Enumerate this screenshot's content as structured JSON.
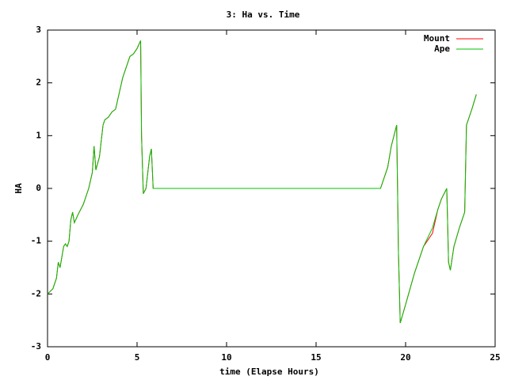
{
  "chart_data": {
    "type": "line",
    "title": "3: Ha vs. Time",
    "x_label": "time (Elapse Hours)",
    "y_label": "HA",
    "x": [
      0,
      0.3,
      0.5,
      0.6,
      0.7,
      0.8,
      0.9,
      1.0,
      1.1,
      1.2,
      1.3,
      1.4,
      1.5,
      1.7,
      2.0,
      2.3,
      2.5,
      2.6,
      2.7,
      2.9,
      3.1,
      3.2,
      3.4,
      3.6,
      3.8,
      4.0,
      4.2,
      4.4,
      4.6,
      4.8,
      5.0,
      5.2,
      5.25,
      5.35,
      5.5,
      5.7,
      5.8,
      5.9,
      18.6,
      19.0,
      19.2,
      19.5,
      19.6,
      19.7,
      20.0,
      20.5,
      21.0,
      21.5,
      21.8,
      22.0,
      22.3,
      22.4,
      22.5,
      22.7,
      23.0,
      23.3,
      23.4,
      23.7,
      23.95
    ],
    "series": [
      {
        "name": "Mount",
        "color": "#ff0000",
        "values": [
          -2.0,
          -1.9,
          -1.7,
          -1.4,
          -1.5,
          -1.3,
          -1.1,
          -1.05,
          -1.1,
          -1.0,
          -0.6,
          -0.45,
          -0.65,
          -0.5,
          -0.3,
          0.0,
          0.3,
          0.8,
          0.35,
          0.6,
          1.2,
          1.3,
          1.35,
          1.45,
          1.5,
          1.8,
          2.1,
          2.3,
          2.5,
          2.55,
          2.65,
          2.8,
          1.0,
          -0.1,
          0.0,
          0.6,
          0.75,
          0.0,
          0.0,
          0.4,
          0.8,
          1.2,
          -1.2,
          -2.55,
          -2.2,
          -1.6,
          -1.1,
          -0.85,
          -0.4,
          -0.2,
          0.0,
          -1.4,
          -1.55,
          -1.1,
          -0.75,
          -0.45,
          1.2,
          1.5,
          1.78
        ]
      },
      {
        "name": "Ape",
        "color": "#00c000",
        "values": [
          -2.0,
          -1.9,
          -1.7,
          -1.4,
          -1.5,
          -1.3,
          -1.1,
          -1.05,
          -1.1,
          -1.0,
          -0.6,
          -0.45,
          -0.65,
          -0.5,
          -0.3,
          0.0,
          0.3,
          0.8,
          0.35,
          0.6,
          1.2,
          1.3,
          1.35,
          1.45,
          1.5,
          1.8,
          2.1,
          2.3,
          2.5,
          2.55,
          2.65,
          2.8,
          1.0,
          -0.1,
          0.0,
          0.6,
          0.75,
          0.0,
          0.0,
          0.4,
          0.8,
          1.2,
          -1.2,
          -2.55,
          -2.2,
          -1.6,
          -1.1,
          -0.75,
          -0.4,
          -0.2,
          0.0,
          -1.4,
          -1.55,
          -1.1,
          -0.75,
          -0.45,
          1.2,
          1.5,
          1.78
        ]
      }
    ],
    "xlim": [
      0,
      25
    ],
    "xticks": [
      0,
      5,
      10,
      15,
      20,
      25
    ],
    "ylim": [
      -3,
      3
    ],
    "yticks": [
      -3,
      -2,
      -1,
      0,
      1,
      2,
      3
    ],
    "legend": "top-right"
  }
}
